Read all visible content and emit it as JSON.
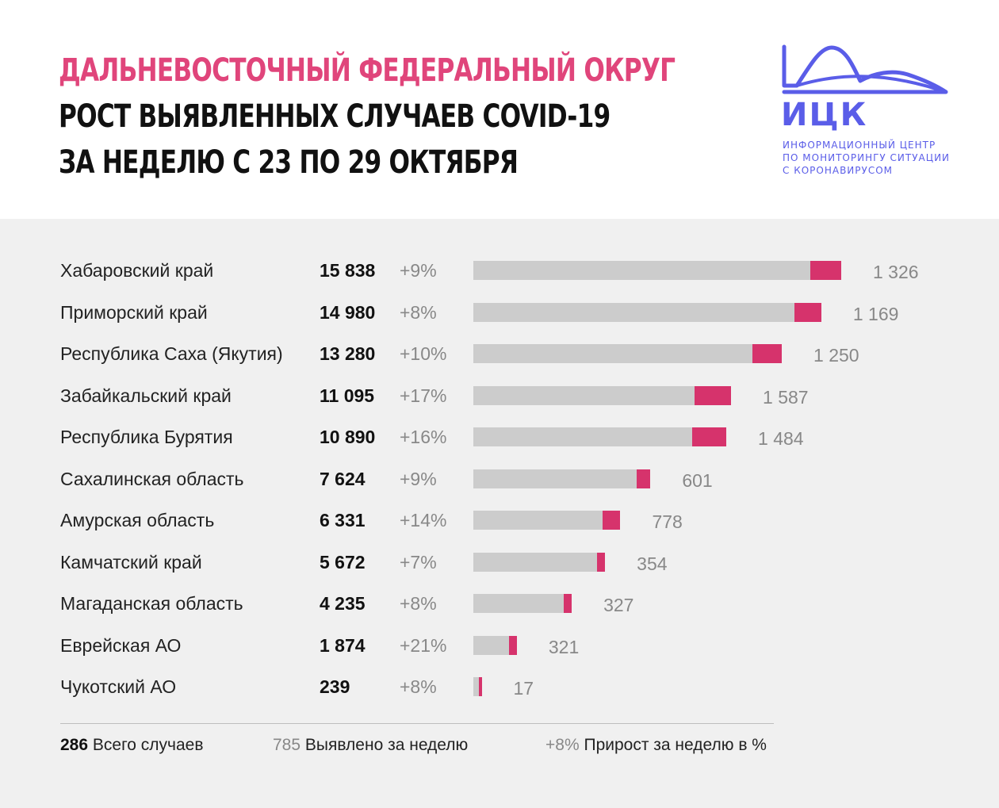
{
  "header": {
    "title_line1": "ДАЛЬНЕВОСТОЧНЫЙ ФЕДЕРАЛЬНЫЙ ОКРУГ",
    "title_line2": "РОСТ ВЫЯВЛЕННЫХ СЛУЧАЕВ COVID-19",
    "title_line3": "ЗА НЕДЕЛЮ С 23 ПО 29 ОКТЯБРЯ",
    "accent_color": "#e0457b"
  },
  "logo": {
    "abbr": "ИЦК",
    "line1": "ИНФОРМАЦИОННЫЙ ЦЕНТР",
    "line2": "ПО МОНИТОРИНГУ СИТУАЦИИ",
    "line3": "С КОРОНАВИРУСОМ",
    "color": "#5a5de8"
  },
  "colors": {
    "base_bar": "#cccccc",
    "new_bar": "#d6336c",
    "panel": "#f0f0f0"
  },
  "chart_data": {
    "type": "bar",
    "orientation": "horizontal",
    "categories": [
      "Хабаровский край",
      "Приморский край",
      "Республика Саха (Якутия)",
      "Забайкальский край",
      "Республика Бурятия",
      "Сахалинская область",
      "Амурская область",
      "Камчатский край",
      "Магаданская область",
      "Еврейская АО",
      "Чукотский АО"
    ],
    "total_labels": [
      "15 838",
      "14 980",
      "13 280",
      "11 095",
      "10 890",
      "7 624",
      "6 331",
      "5 672",
      "4 235",
      "1 874",
      "239"
    ],
    "pct_labels": [
      "+9%",
      "+8%",
      "+10%",
      "+17%",
      "+16%",
      "+9%",
      "+14%",
      "+7%",
      "+8%",
      "+21%",
      "+8%"
    ],
    "new_labels": [
      "1 326",
      "1 169",
      "1 250",
      "1 587",
      "1 484",
      "601",
      "778",
      "354",
      "327",
      "321",
      "17"
    ],
    "series": [
      {
        "name": "Всего случаев",
        "values": [
          15838,
          14980,
          13280,
          11095,
          10890,
          7624,
          6331,
          5672,
          4235,
          1874,
          239
        ]
      },
      {
        "name": "Выявлено за неделю",
        "values": [
          1326,
          1169,
          1250,
          1587,
          1484,
          601,
          778,
          354,
          327,
          321,
          17
        ]
      },
      {
        "name": "Прирост за неделю в %",
        "values": [
          9,
          8,
          10,
          17,
          16,
          9,
          14,
          7,
          8,
          21,
          8
        ]
      }
    ]
  },
  "legend": {
    "total_value": "286",
    "total_label": "Всего случаев",
    "new_value": "785",
    "new_label": "Выявлено за неделю",
    "pct_value": "+8%",
    "pct_label": "Прирост за неделю в %"
  }
}
